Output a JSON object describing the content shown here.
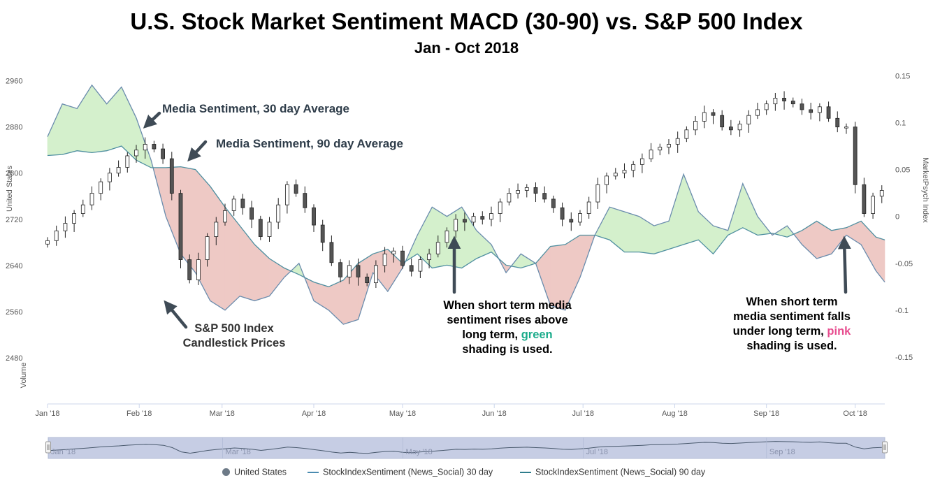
{
  "header": {
    "title": "U.S. Stock Market Sentiment MACD (30-90) vs. S&P 500 Index",
    "subtitle": "Jan - Oct 2018"
  },
  "annotations": {
    "ma30": "Media Sentiment, 30 day Average",
    "ma90": "Media Sentiment, 90 day Average",
    "candle_line1": "S&P 500 Index",
    "candle_line2": "Candlestick Prices",
    "green_line1": "When short term media",
    "green_line2": "sentiment rises above",
    "green_line3": "long term,",
    "green_word": "green",
    "green_line4": "shading is used.",
    "pink_line1": "When short term",
    "pink_line2": "media sentiment falls",
    "pink_line3": "under long term,",
    "pink_word": "pink",
    "pink_line4": "shading is used."
  },
  "colors": {
    "green_fill": "#d4f0cc",
    "pink_fill": "#eec9c5",
    "line_30": "#6a8cad",
    "line_90": "#4f8fa0",
    "candle": "#222222",
    "navigator_fill": "#c6cde4",
    "green_text": "#1aab8a",
    "pink_text": "#e74d8f"
  },
  "legend": {
    "items": [
      {
        "label": "United States",
        "symbol": "circle",
        "color": "#6d7a87"
      },
      {
        "label": "StockIndexSentiment (News_Social) 30 day",
        "symbol": "line",
        "color": "#4a8bb0"
      },
      {
        "label": "StockIndexSentiment (News_Social) 90 day",
        "symbol": "line",
        "color": "#2f7d8c"
      }
    ]
  },
  "chart_data": {
    "type": "line",
    "x_axis": {
      "ticks": [
        "Jan '18",
        "Feb '18",
        "Mar '18",
        "Apr '18",
        "May '18",
        "Jun '18",
        "Jul '18",
        "Aug '18",
        "Sep '18",
        "Oct '18"
      ],
      "range": [
        "2018-01-01",
        "2018-10-11"
      ]
    },
    "y_left": {
      "label": "United States",
      "ticks": [
        2960,
        2880,
        2800,
        2720,
        2640,
        2560,
        2480
      ],
      "range": [
        2400,
        2985
      ]
    },
    "y_right": {
      "label": "MarketPsych Index",
      "ticks": [
        0.15,
        0.1,
        0.05,
        0,
        -0.05,
        -0.1,
        -0.15
      ],
      "range": [
        -0.2,
        0.16
      ]
    },
    "volume_label": "Volume",
    "navigator_ticks": [
      "Jan '18",
      "Mar '18",
      "May '18",
      "Jul '18",
      "Sep '18"
    ],
    "sentiment": {
      "days": [
        0,
        5,
        10,
        15,
        20,
        25,
        30,
        35,
        40,
        45,
        50,
        55,
        60,
        65,
        70,
        75,
        80,
        85,
        90,
        95,
        100,
        105,
        110,
        115,
        120,
        125,
        130,
        135,
        140,
        145,
        150,
        155,
        160,
        165,
        170,
        175,
        180,
        185,
        190,
        195,
        200,
        205,
        210,
        215,
        220,
        225,
        230,
        235,
        240,
        245,
        250,
        255,
        260,
        265,
        270,
        275,
        280,
        283
      ],
      "s30": [
        0.085,
        0.12,
        0.115,
        0.14,
        0.12,
        0.138,
        0.105,
        0.06,
        0.0,
        -0.04,
        -0.06,
        -0.09,
        -0.1,
        -0.085,
        -0.09,
        -0.085,
        -0.065,
        -0.05,
        -0.09,
        -0.1,
        -0.115,
        -0.11,
        -0.06,
        -0.08,
        -0.055,
        -0.02,
        0.01,
        0.0,
        0.01,
        -0.015,
        -0.03,
        -0.06,
        -0.04,
        -0.05,
        -0.095,
        -0.1,
        -0.065,
        -0.02,
        0.01,
        0.005,
        0.0,
        -0.01,
        -0.005,
        0.045,
        0.005,
        -0.01,
        -0.015,
        0.035,
        0.0,
        -0.02,
        -0.01,
        -0.03,
        -0.045,
        -0.04,
        -0.02,
        -0.03,
        -0.058,
        -0.07
      ],
      "s90": [
        0.065,
        0.066,
        0.07,
        0.068,
        0.07,
        0.075,
        0.06,
        0.052,
        0.052,
        0.053,
        0.05,
        0.032,
        0.01,
        -0.01,
        -0.03,
        -0.045,
        -0.055,
        -0.062,
        -0.07,
        -0.075,
        -0.068,
        -0.05,
        -0.04,
        -0.035,
        -0.05,
        -0.04,
        -0.055,
        -0.052,
        -0.055,
        -0.045,
        -0.038,
        -0.052,
        -0.055,
        -0.05,
        -0.032,
        -0.03,
        -0.02,
        -0.02,
        -0.025,
        -0.038,
        -0.038,
        -0.04,
        -0.035,
        -0.03,
        -0.025,
        -0.04,
        -0.02,
        -0.012,
        -0.02,
        -0.018,
        -0.022,
        -0.015,
        -0.005,
        -0.015,
        -0.012,
        -0.005,
        -0.022,
        -0.025
      ]
    },
    "sp500": {
      "days": [
        0,
        3,
        6,
        9,
        12,
        15,
        18,
        21,
        24,
        27,
        30,
        33,
        36,
        39,
        42,
        45,
        48,
        51,
        54,
        57,
        60,
        63,
        66,
        69,
        72,
        75,
        78,
        81,
        84,
        87,
        90,
        93,
        96,
        99,
        102,
        105,
        108,
        111,
        114,
        117,
        120,
        123,
        126,
        129,
        132,
        135,
        138,
        141,
        144,
        147,
        150,
        153,
        156,
        159,
        162,
        165,
        168,
        171,
        174,
        177,
        180,
        183,
        186,
        189,
        192,
        195,
        198,
        201,
        204,
        207,
        210,
        213,
        216,
        219,
        222,
        225,
        228,
        231,
        234,
        237,
        240,
        243,
        246,
        249,
        252,
        255,
        258,
        261,
        264,
        267,
        270,
        273,
        276,
        279,
        282
      ],
      "close": [
        2683,
        2700,
        2713,
        2730,
        2745,
        2765,
        2785,
        2800,
        2810,
        2830,
        2840,
        2850,
        2842,
        2825,
        2765,
        2650,
        2615,
        2650,
        2690,
        2715,
        2735,
        2755,
        2740,
        2720,
        2690,
        2715,
        2745,
        2780,
        2765,
        2740,
        2710,
        2680,
        2645,
        2620,
        2640,
        2620,
        2610,
        2640,
        2660,
        2665,
        2640,
        2630,
        2650,
        2660,
        2680,
        2700,
        2720,
        2715,
        2725,
        2720,
        2730,
        2750,
        2765,
        2770,
        2775,
        2765,
        2755,
        2740,
        2720,
        2715,
        2730,
        2750,
        2780,
        2795,
        2800,
        2805,
        2815,
        2825,
        2840,
        2845,
        2850,
        2860,
        2875,
        2890,
        2905,
        2900,
        2880,
        2875,
        2885,
        2900,
        2910,
        2920,
        2930,
        2925,
        2920,
        2910,
        2905,
        2915,
        2895,
        2880,
        2880,
        2780,
        2730,
        2760,
        2770
      ]
    }
  }
}
